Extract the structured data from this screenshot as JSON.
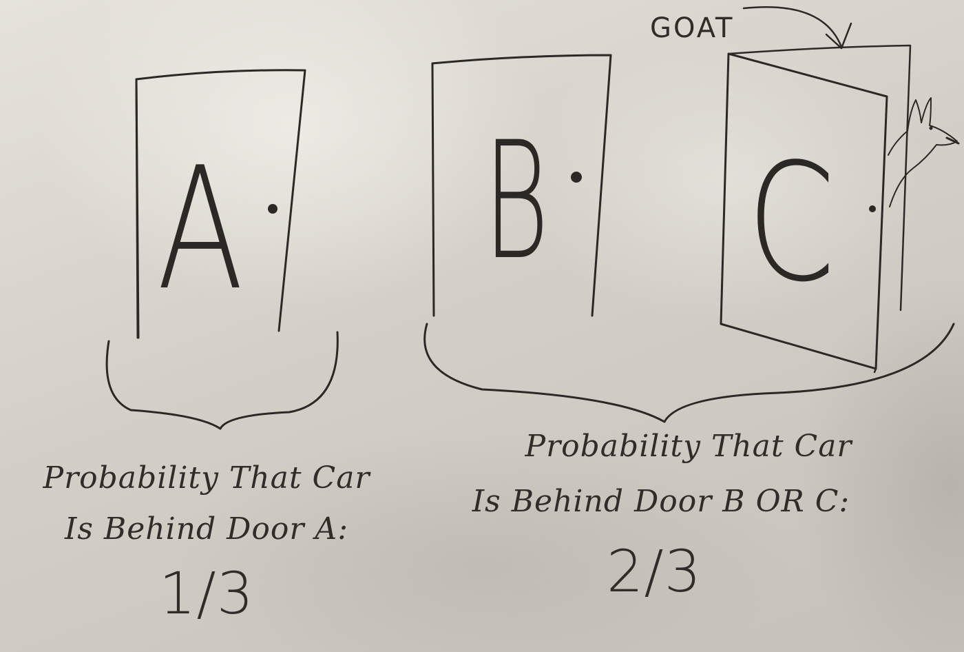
{
  "doors": [
    {
      "letter": "A"
    },
    {
      "letter": "B"
    },
    {
      "letter": "C"
    }
  ],
  "annotation": {
    "label": "GOAT"
  },
  "groups": [
    {
      "line1": "Probability That Car",
      "line2": "Is Behind Door A:",
      "value": "1/3"
    },
    {
      "line1": "Probability That Car",
      "line2": "Is Behind Door B OR C:",
      "value": "2/3"
    }
  ],
  "colors": {
    "ink": "#2b2826",
    "paper": "#d8d3cc"
  }
}
